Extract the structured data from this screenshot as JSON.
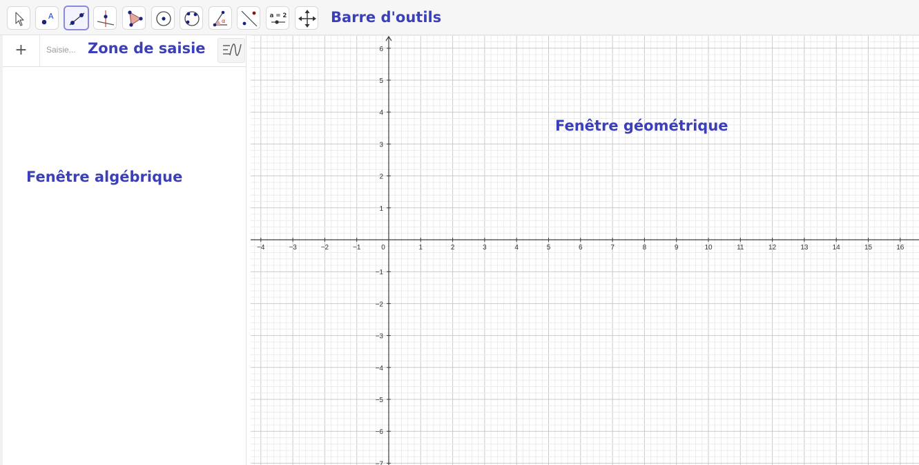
{
  "toolbar": {
    "active_tool": "segment",
    "tools": [
      {
        "id": "move",
        "icon": "cursor-arrow-icon"
      },
      {
        "id": "point",
        "icon": "point-icon"
      },
      {
        "id": "segment",
        "icon": "segment-icon"
      },
      {
        "id": "perpendicular",
        "icon": "perpendicular-line-icon"
      },
      {
        "id": "polygon",
        "icon": "polygon-icon"
      },
      {
        "id": "circle",
        "icon": "circle-center-point-icon"
      },
      {
        "id": "circle3",
        "icon": "circle-three-points-icon"
      },
      {
        "id": "angle",
        "icon": "angle-icon"
      },
      {
        "id": "reflect",
        "icon": "reflect-point-icon"
      },
      {
        "id": "slider",
        "icon": "slider-icon"
      },
      {
        "id": "move-view",
        "icon": "move-graphics-view-icon"
      }
    ],
    "slider_icon_text": "a = 2",
    "angle_icon_text": "α",
    "point_icon_text": "A"
  },
  "labels": {
    "toolbar": "Barre d'outils",
    "input_zone": "Zone de saisie",
    "algebra_view": "Fenêtre algébrique",
    "graphics_view": "Fenêtre géométrique"
  },
  "algebra": {
    "add_label": "+",
    "input_placeholder": "Saisie...",
    "menu_icon": "algebra-view-menu-icon"
  },
  "graphics": {
    "x_ticks": [
      "−4",
      "−3",
      "−2",
      "−1",
      "0",
      "1",
      "2",
      "3",
      "4",
      "5",
      "6",
      "7",
      "8",
      "9",
      "10",
      "11",
      "12",
      "13",
      "14",
      "15",
      "16"
    ],
    "y_ticks_positive": [
      "6",
      "5",
      "4",
      "3",
      "2",
      "1"
    ],
    "y_ticks_negative": [
      "−1",
      "−2",
      "−3",
      "−4",
      "−5",
      "−6",
      "−7"
    ]
  },
  "colors": {
    "annotation": "#3b3fb8",
    "accent_point": "#1a237e",
    "active_tool_border": "#8a8bd6"
  }
}
